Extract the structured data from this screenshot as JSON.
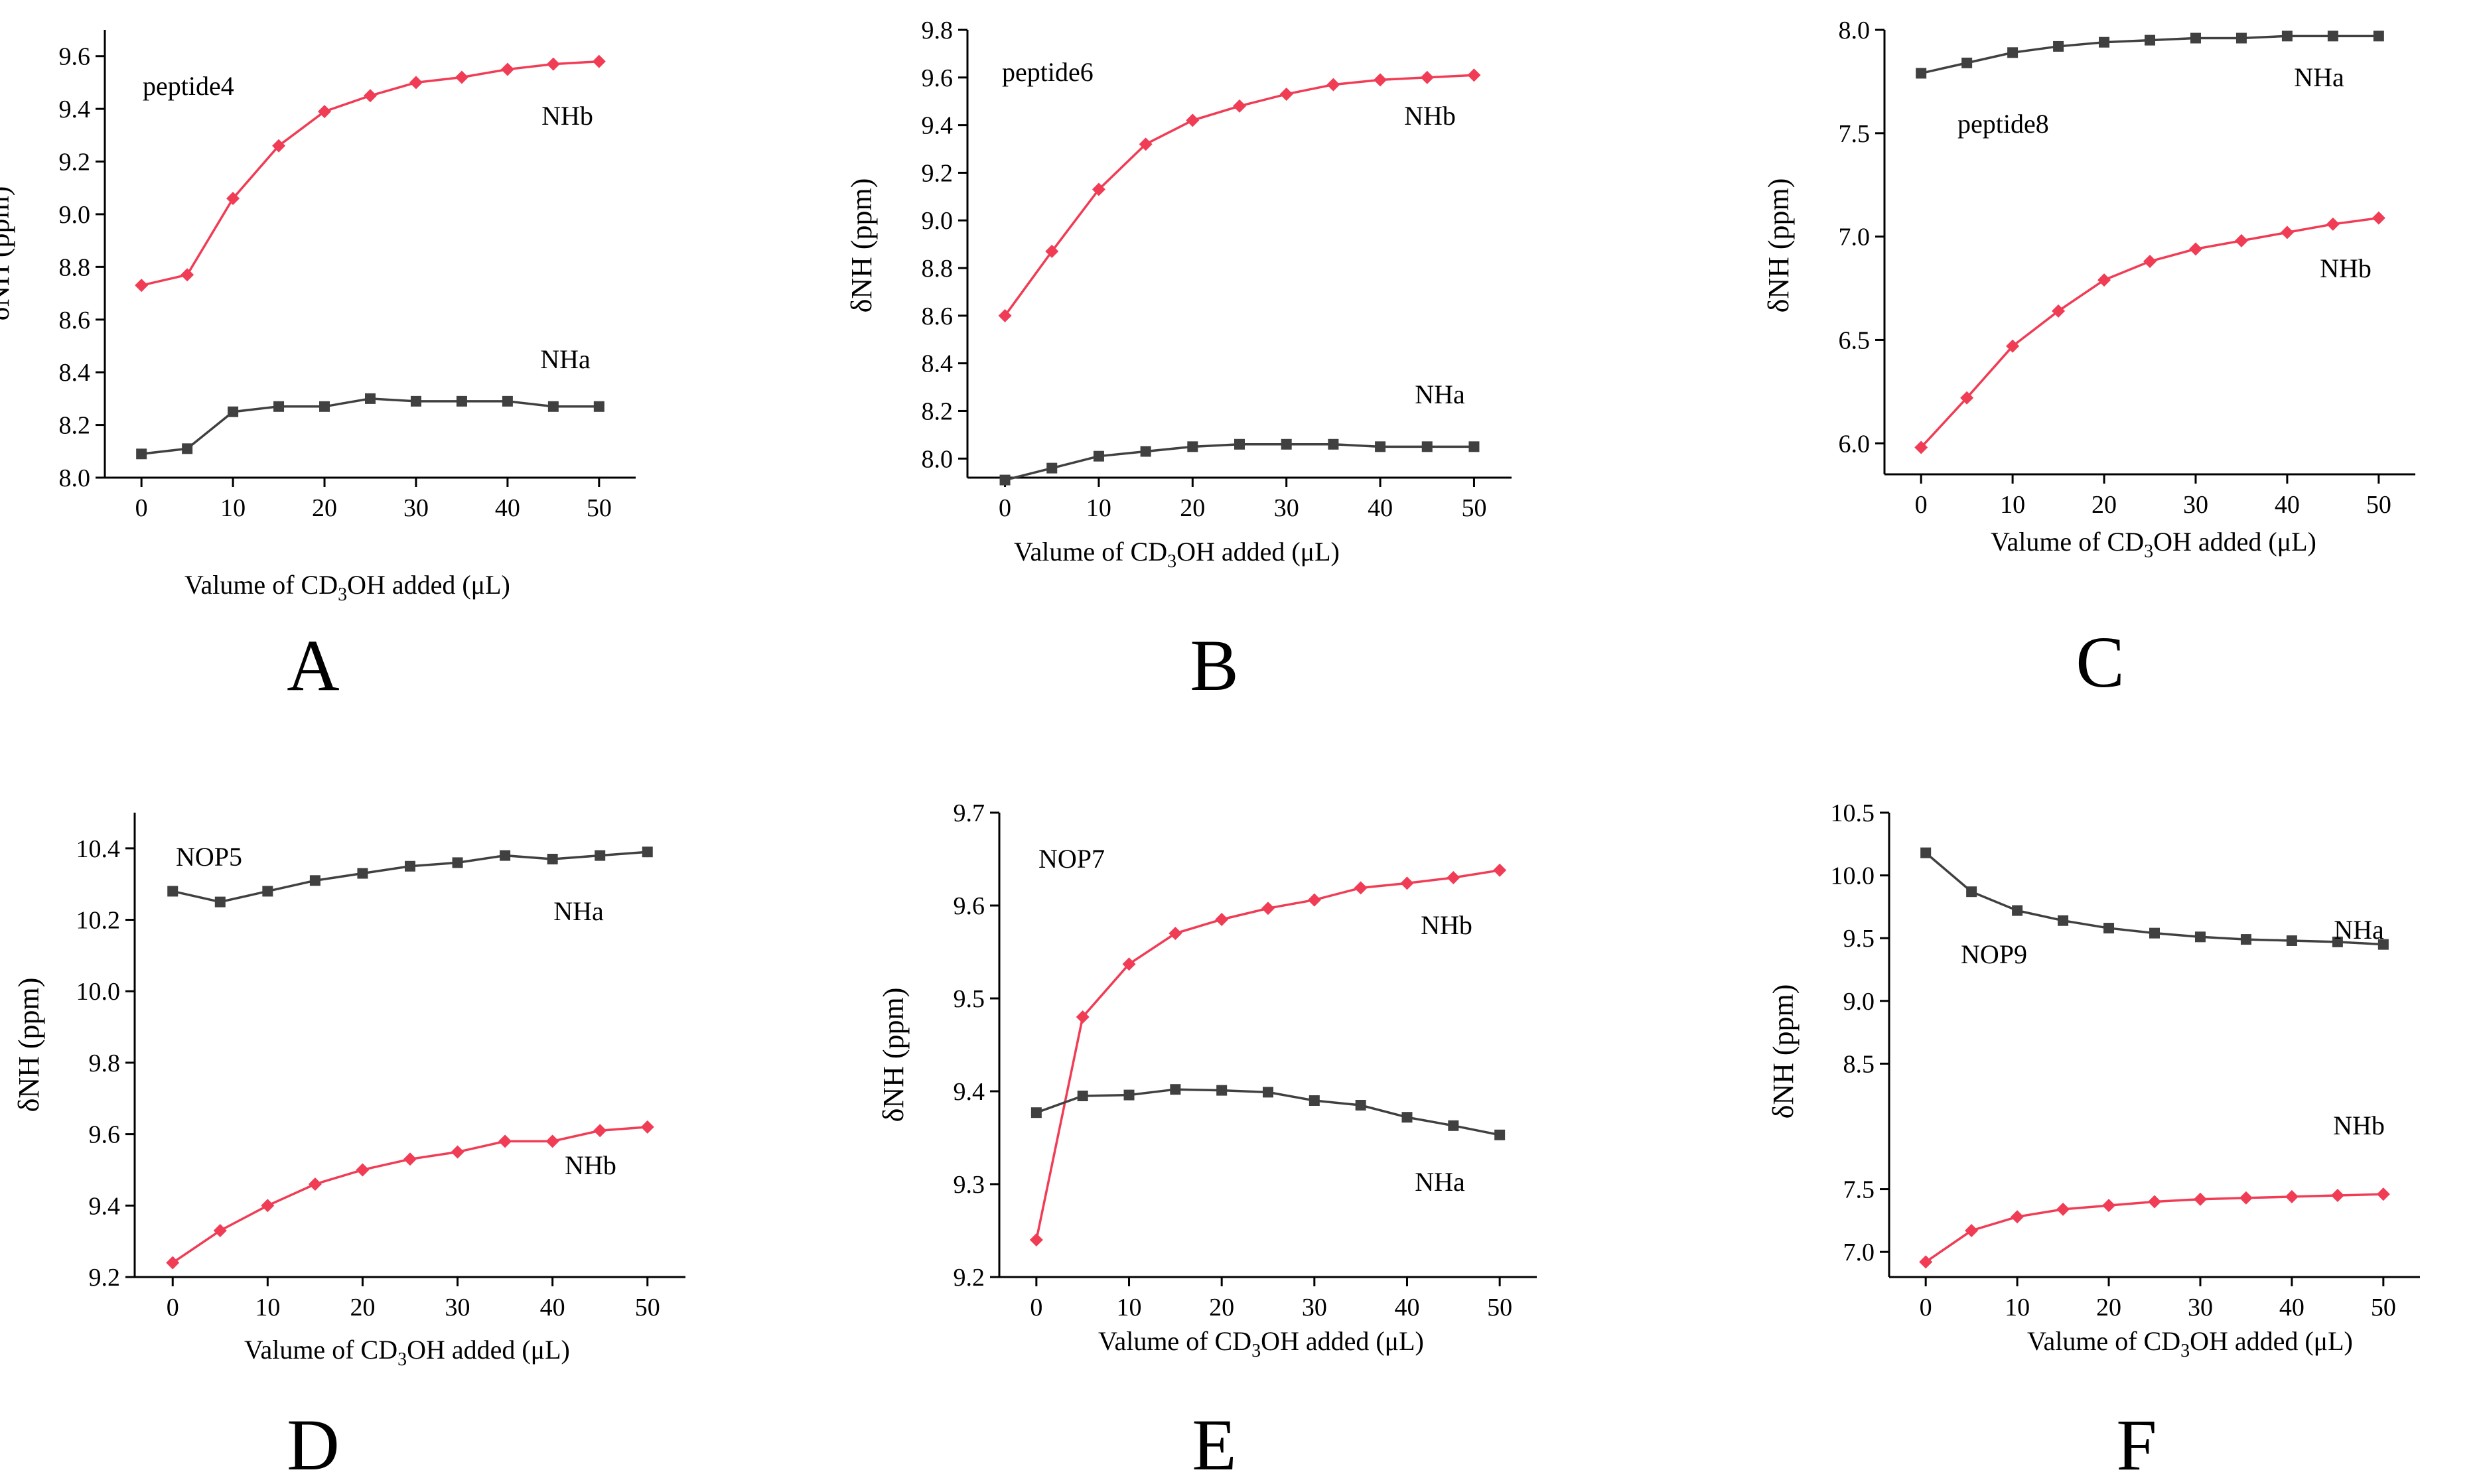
{
  "chart_data": [
    {
      "type": "line",
      "panel_letter": "A",
      "annotation": "peptide4",
      "xlabel": "Valume of  CD3OH added (μL)",
      "ylabel": "δNH (ppm)",
      "xlim": [
        -4,
        54
      ],
      "ylim": [
        8.0,
        9.7
      ],
      "xticks": [
        "0",
        "10",
        "20",
        "30",
        "40",
        "50"
      ],
      "yticks": [
        "8.0",
        "8.2",
        "8.4",
        "8.6",
        "8.8",
        "9.0",
        "9.2",
        "9.4",
        "9.6"
      ],
      "x": [
        0,
        5,
        10,
        15,
        20,
        25,
        30,
        35,
        40,
        45,
        50
      ],
      "series": [
        {
          "name": "NHb",
          "color": "#f03c54",
          "marker": "diamond",
          "values": [
            8.73,
            8.77,
            9.06,
            9.26,
            9.39,
            9.45,
            9.5,
            9.52,
            9.55,
            9.57,
            9.58
          ]
        },
        {
          "name": "NHa",
          "color": "#404040",
          "marker": "square",
          "values": [
            8.09,
            8.11,
            8.25,
            8.27,
            8.27,
            8.3,
            8.29,
            8.29,
            8.29,
            8.27,
            8.27
          ]
        }
      ]
    },
    {
      "type": "line",
      "panel_letter": "B",
      "annotation": "peptide6",
      "xlabel": "Valume of  CD3OH added (μL)",
      "ylabel": "δNH (ppm)",
      "xlim": [
        -4,
        54
      ],
      "ylim": [
        7.92,
        9.8
      ],
      "xticks": [
        "0",
        "10",
        "20",
        "30",
        "40",
        "50"
      ],
      "yticks": [
        "8.0",
        "8.2",
        "8.4",
        "8.6",
        "8.8",
        "9.0",
        "9.2",
        "9.4",
        "9.6",
        "9.8"
      ],
      "x": [
        0,
        5,
        10,
        15,
        20,
        25,
        30,
        35,
        40,
        45,
        50
      ],
      "series": [
        {
          "name": "NHb",
          "color": "#f03c54",
          "marker": "diamond",
          "values": [
            8.6,
            8.87,
            9.13,
            9.32,
            9.42,
            9.48,
            9.53,
            9.57,
            9.59,
            9.6,
            9.61
          ]
        },
        {
          "name": "NHa",
          "color": "#404040",
          "marker": "square",
          "values": [
            7.91,
            7.96,
            8.01,
            8.03,
            8.05,
            8.06,
            8.06,
            8.06,
            8.05,
            8.05,
            8.05
          ]
        }
      ]
    },
    {
      "type": "line",
      "panel_letter": "C",
      "annotation": "peptide8",
      "xlabel": "Valume of  CD3OH added (μL)",
      "ylabel": "δNH (ppm)",
      "xlim": [
        -4,
        54
      ],
      "ylim": [
        5.85,
        8.0
      ],
      "xticks": [
        "0",
        "10",
        "20",
        "30",
        "40",
        "50"
      ],
      "yticks": [
        "6.0",
        "6.5",
        "7.0",
        "7.5",
        "8.0"
      ],
      "x": [
        0,
        5,
        10,
        15,
        20,
        25,
        30,
        35,
        40,
        45,
        50
      ],
      "series": [
        {
          "name": "NHa",
          "color": "#404040",
          "marker": "square",
          "values": [
            7.79,
            7.84,
            7.89,
            7.92,
            7.94,
            7.95,
            7.96,
            7.96,
            7.97,
            7.97,
            7.97
          ]
        },
        {
          "name": "NHb",
          "color": "#f03c54",
          "marker": "diamond",
          "values": [
            5.98,
            6.22,
            6.47,
            6.64,
            6.79,
            6.88,
            6.94,
            6.98,
            7.02,
            7.06,
            7.09
          ]
        }
      ]
    },
    {
      "type": "line",
      "panel_letter": "D",
      "annotation": "NOP5",
      "xlabel": "Valume of  CD3OH added (μL)",
      "ylabel": "δNH (ppm)",
      "xlim": [
        -4,
        54
      ],
      "ylim": [
        9.2,
        10.5
      ],
      "xticks": [
        "0",
        "10",
        "20",
        "30",
        "40",
        "50"
      ],
      "yticks": [
        "9.2",
        "9.4",
        "9.6",
        "9.8",
        "10.0",
        "10.2",
        "10.4"
      ],
      "x": [
        0,
        5,
        10,
        15,
        20,
        25,
        30,
        35,
        40,
        45,
        50
      ],
      "series": [
        {
          "name": "NHa",
          "color": "#404040",
          "marker": "square",
          "values": [
            10.28,
            10.25,
            10.28,
            10.31,
            10.33,
            10.35,
            10.36,
            10.38,
            10.37,
            10.38,
            10.39
          ]
        },
        {
          "name": "NHb",
          "color": "#f03c54",
          "marker": "diamond",
          "values": [
            9.24,
            9.33,
            9.4,
            9.46,
            9.5,
            9.53,
            9.55,
            9.58,
            9.58,
            9.61,
            9.62
          ]
        }
      ]
    },
    {
      "type": "line",
      "panel_letter": "E",
      "annotation": "NOP7",
      "xlabel": "Valume of  CD3OH added (μL)",
      "ylabel": "δNH (ppm)",
      "xlim": [
        -4,
        54
      ],
      "ylim": [
        9.2,
        9.7
      ],
      "xticks": [
        "0",
        "10",
        "20",
        "30",
        "40",
        "50"
      ],
      "yticks": [
        "9.2",
        "9.3",
        "9.4",
        "9.5",
        "9.6",
        "9.7"
      ],
      "x": [
        0,
        5,
        10,
        15,
        20,
        25,
        30,
        35,
        40,
        45,
        50
      ],
      "series": [
        {
          "name": "NHb",
          "color": "#f03c54",
          "marker": "diamond",
          "values": [
            9.24,
            9.48,
            9.537,
            9.57,
            9.585,
            9.597,
            9.606,
            9.619,
            9.624,
            9.63,
            9.638
          ]
        },
        {
          "name": "NHa",
          "color": "#404040",
          "marker": "square",
          "values": [
            9.377,
            9.395,
            9.396,
            9.402,
            9.401,
            9.399,
            9.39,
            9.385,
            9.372,
            9.363,
            9.353
          ]
        }
      ]
    },
    {
      "type": "line",
      "panel_letter": "F",
      "annotation": "NOP9",
      "xlabel": "Valume of  CD3OH added (μL)",
      "ylabel": "δNH (ppm)",
      "xlim": [
        -4,
        54
      ],
      "ylim": [
        6.8,
        10.5
      ],
      "xticks": [
        "0",
        "10",
        "20",
        "30",
        "40",
        "50"
      ],
      "yticks": [
        "7.0",
        "7.5",
        "8.5",
        "9.0",
        "9.5",
        "10.0",
        "10.5"
      ],
      "x": [
        0,
        5,
        10,
        15,
        20,
        25,
        30,
        35,
        40,
        45,
        50
      ],
      "series": [
        {
          "name": "NHa",
          "color": "#404040",
          "marker": "square",
          "values": [
            10.18,
            9.87,
            9.72,
            9.64,
            9.58,
            9.54,
            9.51,
            9.49,
            9.48,
            9.47,
            9.45
          ]
        },
        {
          "name": "NHb",
          "color": "#f03c54",
          "marker": "diamond",
          "values": [
            6.92,
            7.17,
            7.28,
            7.34,
            7.37,
            7.4,
            7.42,
            7.43,
            7.44,
            7.45,
            7.46
          ]
        }
      ]
    }
  ]
}
